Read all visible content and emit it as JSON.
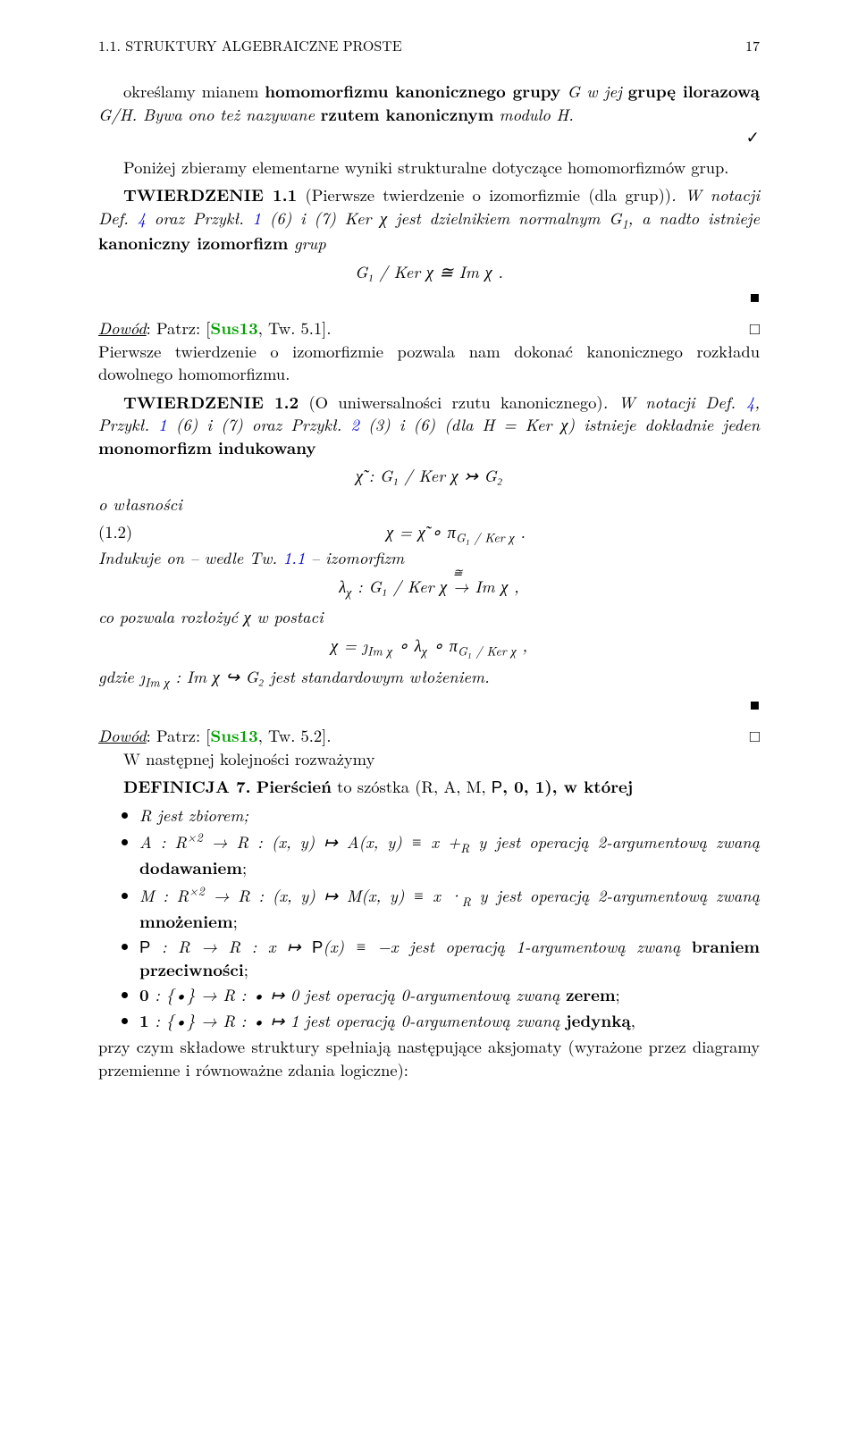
{
  "header": {
    "running": "1.1. STRUKTURY ALGEBRAICZNE PROSTE",
    "page": "17"
  },
  "p1a": "określamy mianem ",
  "p1b": "homomorfizmu kanonicznego grupy",
  "p1c": "  G  w jej",
  "p1d": "grupę ilorazową",
  "p1e": "  G/H.  Bywa ono też nazywane ",
  "p1f": "rzutem kanonicznym",
  "p1g": "modulo",
  "p1h": "  H.",
  "check": "✓",
  "p2": "Poniżej zbieramy elementarne wyniki strukturalne dotyczące homomorfizmów grup.",
  "thm1": {
    "label": "TWIERDZENIE 1.1",
    "title": " (Pierwsze twierdzenie o izomorfizmie (dla grup))",
    "tailA": ".  W notacji Def. ",
    "ref4": "4",
    "tailB": " oraz Przykł. ",
    "ref1": "1",
    "tailC": " (6) i (7)  Ker χ  jest dzielnikiem normalnym  G",
    "sub1": "1",
    "tailD": ",  a nadto istnieje ",
    "bold": "kanoniczny izomorfizm",
    "tailE": " grup"
  },
  "eq1": "G₁ / Ker χ ≅ Im χ .",
  "proof1a": "Dowód",
  "proof1b": ": Patrz: [",
  "proof1ref": "Sus13",
  "proof1c": ", Tw. 5.1].",
  "qedOpen": "□",
  "qedSolid": "■",
  "p3": "Pierwsze twierdzenie o izomorfizmie pozwala nam dokonać kanonicznego rozkładu dowolnego homomorfizmu.",
  "thm2": {
    "label": "TWIERDZENIE 1.2",
    "title": " (O uniwersalności rzutu kanonicznego)",
    "tailA": ".  W notacji Def. ",
    "ref4": "4",
    "tailB": ", Przykł. ",
    "ref1a": "1",
    "tailC": " (6) i (7) oraz Przykł. ",
    "ref2": "2",
    "tailD": " (3) i (6) (dla  H = Ker χ)  istnieje dokładnie jeden ",
    "bold": "monomorfizm indukowany"
  },
  "eq2": "χ̃  :  G₁ / Ker χ ↣ G₂",
  "p4": "o własności",
  "eq3num": "(1.2)",
  "eq3": "χ = χ̃ ∘ π",
  "eq3sub": "G₁ / Ker χ",
  "eq3tail": " .",
  "p5a": "Indukuje on – wedle Tw. ",
  "p5ref": "1.1",
  "p5b": " – izomorfizm",
  "eq4a": "λ",
  "eq4sub": "χ",
  "eq4b": "  :  G₁ / Ker χ ",
  "eq4arrow": "≅",
  "eq4c": " Im χ ,",
  "p6": "co pozwala rozłożyć  χ  w postaci",
  "eq5a": "χ = ȷ",
  "eq5s1": "Im χ",
  "eq5b": " ∘ λ",
  "eq5s2": "χ",
  "eq5c": " ∘ π",
  "eq5s3": "G₁ / Ker χ",
  "eq5d": " ,",
  "p7a": "gdzie  ȷ",
  "p7s": "Im χ",
  "p7b": "  :  Im χ ↪ G₂  jest standardowym włożeniem.",
  "proof2a": "Dowód",
  "proof2b": ": Patrz: [",
  "proof2ref": "Sus13",
  "proof2c": ", Tw. 5.2].",
  "p8": "W następnej kolejności rozważymy",
  "def": {
    "label": "DEFINICJA 7.",
    "a": "  ",
    "bold": "Pierścień",
    "b": " to szóstka  (R, A, M, ",
    "sf": "P",
    "c": ", 0, 1),  w której"
  },
  "b1": "R  jest zbiorem;",
  "b2a": "A  :  R",
  "b2sup": "×2",
  "b2b": " → R  :  (x, y) ↦ A(x, y) ≡ x +",
  "b2sub": "R",
  "b2c": " y  jest operacją 2-argumentową zwaną ",
  "b2bold": "dodawaniem",
  "b2d": ";",
  "b3a": "M  :  R",
  "b3sup": "×2",
  "b3b": " → R  :  (x, y) ↦ M(x, y) ≡ x ·",
  "b3sub": "R",
  "b3c": " y  jest operacją 2-argumentową zwaną ",
  "b3bold": "mnożeniem",
  "b3d": ";",
  "b4sf": "P",
  "b4a": "  :  R → R  :  x ↦ ",
  "b4sf2": "P",
  "b4b": "(x) ≡ −x  jest operacją 1-argumentową zwaną ",
  "b4bold": "braniem przeciwności",
  "b4c": ";",
  "b5a": "0",
  "b5b": "  :  {•} → R  :  • ↦ 0  jest operacją 0-argumentową zwaną ",
  "b5bold": "zerem",
  "b5c": ";",
  "b6a": "1",
  "b6b": "  :  {•} → R  :  • ↦ 1  jest operacją 0-argumentową zwaną ",
  "b6bold": "jedynką",
  "b6c": ",",
  "p9": "przy czym składowe struktury spełniają następujące aksjomaty (wyrażone przez diagramy przemienne i równoważne zdania logiczne):"
}
